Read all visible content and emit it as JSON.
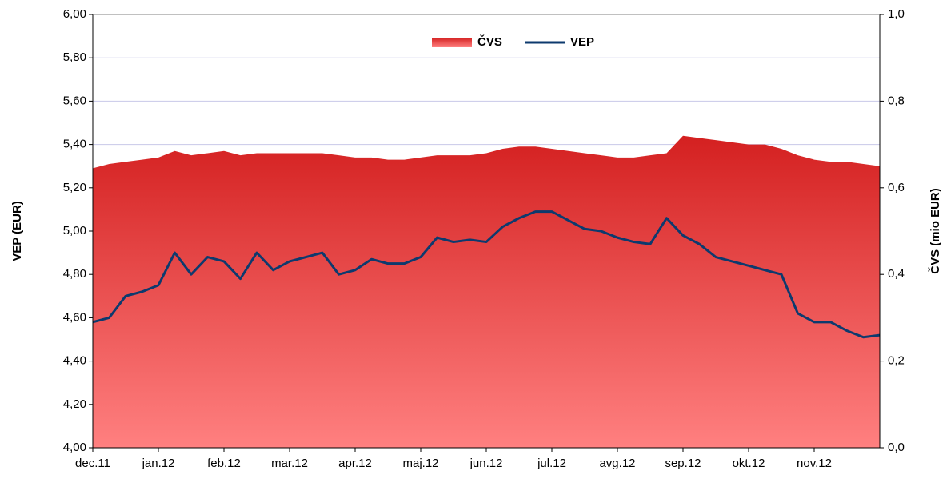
{
  "chart_data": {
    "type": "line-area",
    "categories": [
      "dec.11",
      null,
      null,
      null,
      "jan.12",
      null,
      null,
      null,
      "feb.12",
      null,
      null,
      null,
      "mar.12",
      null,
      null,
      null,
      "apr.12",
      null,
      null,
      null,
      "maj.12",
      null,
      null,
      null,
      "jun.12",
      null,
      null,
      null,
      "jul.12",
      null,
      null,
      null,
      "avg.12",
      null,
      null,
      null,
      "sep.12",
      null,
      null,
      null,
      "okt.12",
      null,
      null,
      null,
      "nov.12",
      null,
      null,
      null,
      null
    ],
    "series": [
      {
        "name": "ČVS",
        "type": "area",
        "axis": "y2",
        "color": "#d42020",
        "values": [
          0.645,
          0.655,
          0.66,
          0.665,
          0.67,
          0.685,
          0.675,
          0.68,
          0.685,
          0.675,
          0.68,
          0.68,
          0.68,
          0.68,
          0.68,
          0.675,
          0.67,
          0.67,
          0.665,
          0.665,
          0.67,
          0.675,
          0.675,
          0.675,
          0.68,
          0.69,
          0.695,
          0.695,
          0.69,
          0.685,
          0.68,
          0.675,
          0.67,
          0.67,
          0.675,
          0.68,
          0.72,
          0.715,
          0.71,
          0.705,
          0.7,
          0.7,
          0.69,
          0.675,
          0.665,
          0.66,
          0.66,
          0.655,
          0.65
        ]
      },
      {
        "name": "VEP",
        "type": "line",
        "axis": "y",
        "color": "#0d3a6e",
        "values": [
          4.58,
          4.6,
          4.7,
          4.72,
          4.75,
          4.9,
          4.8,
          4.88,
          4.86,
          4.78,
          4.9,
          4.82,
          4.86,
          4.88,
          4.9,
          4.8,
          4.82,
          4.87,
          4.85,
          4.85,
          4.88,
          4.97,
          4.95,
          4.96,
          4.95,
          5.02,
          5.06,
          5.09,
          5.09,
          5.05,
          5.01,
          5.0,
          4.97,
          4.95,
          4.94,
          5.06,
          4.98,
          4.94,
          4.88,
          4.86,
          4.84,
          4.82,
          4.8,
          4.62,
          4.58,
          4.58,
          4.54,
          4.51,
          4.52
        ]
      }
    ],
    "y_label": "VEP (EUR)",
    "y2_label": "ČVS (mio EUR)",
    "ylim": [
      4,
      6
    ],
    "yticks": [
      {
        "value": 4,
        "label": "4,00"
      },
      {
        "value": 4.2,
        "label": "4,20"
      },
      {
        "value": 4.4,
        "label": "4,40"
      },
      {
        "value": 4.6,
        "label": "4,60"
      },
      {
        "value": 4.8,
        "label": "4,80"
      },
      {
        "value": 5,
        "label": "5,00"
      },
      {
        "value": 5.2,
        "label": "5,20"
      },
      {
        "value": 5.4,
        "label": "5,40"
      },
      {
        "value": 5.6,
        "label": "5,60"
      },
      {
        "value": 5.8,
        "label": "5,80"
      },
      {
        "value": 6,
        "label": "6,00"
      }
    ],
    "y2lim": [
      0,
      1
    ],
    "y2ticks": [
      {
        "value": 0,
        "label": "0,0"
      },
      {
        "value": 0.2,
        "label": "0,2"
      },
      {
        "value": 0.4,
        "label": "0,4"
      },
      {
        "value": 0.6,
        "label": "0,6"
      },
      {
        "value": 0.8,
        "label": "0,8"
      },
      {
        "value": 1,
        "label": "1,0"
      }
    ],
    "grid": true,
    "legend": "top"
  }
}
